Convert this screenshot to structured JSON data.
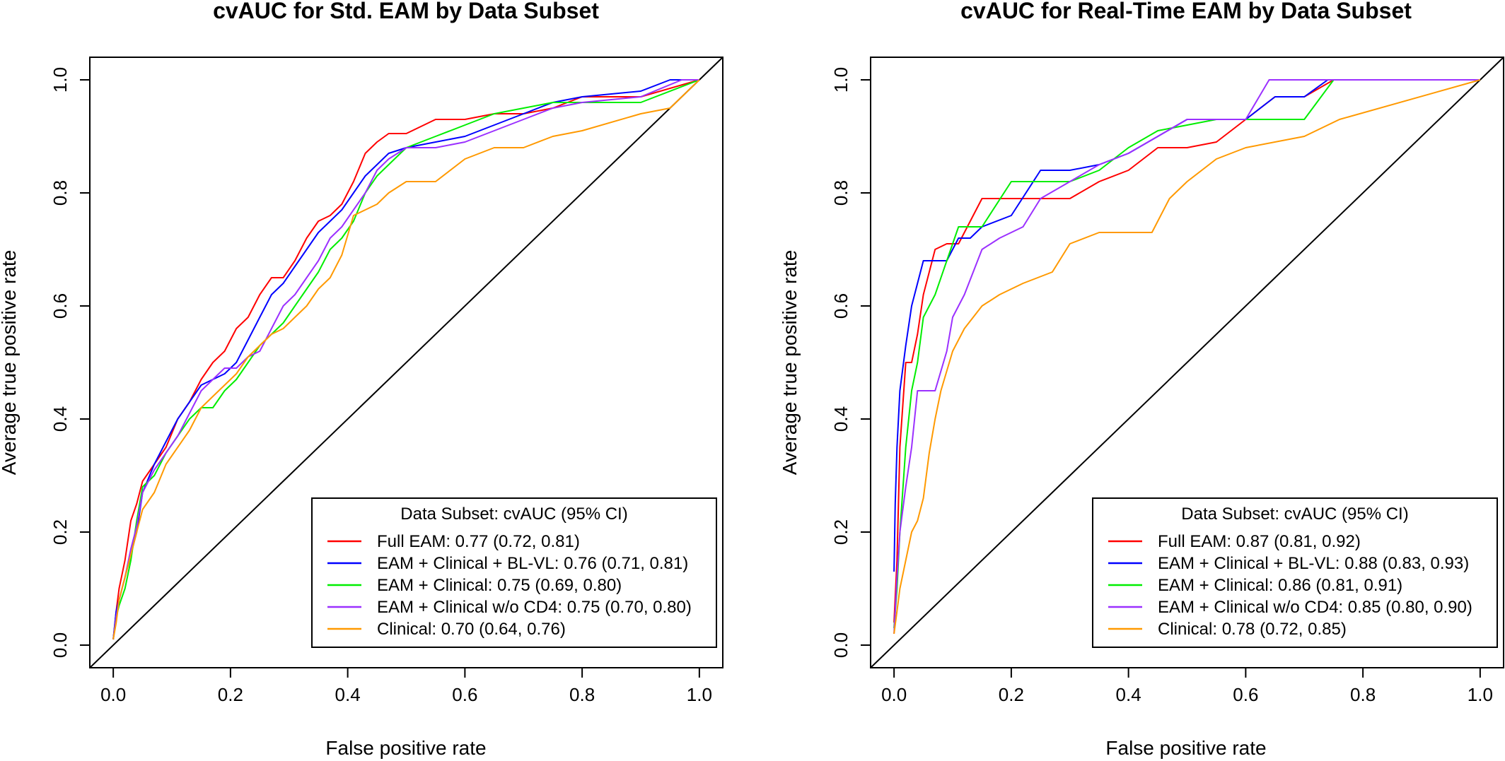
{
  "chart_data": [
    {
      "type": "line",
      "title": "cvAUC for Std. EAM by Data Subset",
      "xlabel": "False positive rate",
      "ylabel": "Average true positive rate",
      "xlim": [
        -0.04,
        1.04
      ],
      "ylim": [
        -0.04,
        1.04
      ],
      "xticks": [
        "0.0",
        "0.2",
        "0.4",
        "0.6",
        "0.8",
        "1.0"
      ],
      "yticks": [
        "0.0",
        "0.2",
        "0.4",
        "0.6",
        "0.8",
        "1.0"
      ],
      "legend": {
        "title": "Data Subset: cvAUC (95% CI)",
        "position": "bottom-right"
      },
      "reference_line": {
        "x": [
          -0.04,
          1.04
        ],
        "y": [
          -0.04,
          1.04
        ],
        "color": "#000000"
      },
      "series": [
        {
          "name": "Full EAM: 0.77 (0.72, 0.81)",
          "color": "#ff0000",
          "x": [
            0,
            0.005,
            0.01,
            0.02,
            0.03,
            0.04,
            0.05,
            0.07,
            0.09,
            0.11,
            0.13,
            0.15,
            0.17,
            0.19,
            0.21,
            0.23,
            0.25,
            0.27,
            0.29,
            0.31,
            0.33,
            0.35,
            0.37,
            0.39,
            0.41,
            0.43,
            0.45,
            0.47,
            0.5,
            0.55,
            0.6,
            0.65,
            0.7,
            0.75,
            0.8,
            0.9,
            1.0
          ],
          "y": [
            0.01,
            0.06,
            0.1,
            0.15,
            0.22,
            0.25,
            0.29,
            0.32,
            0.35,
            0.4,
            0.43,
            0.47,
            0.5,
            0.52,
            0.56,
            0.58,
            0.62,
            0.65,
            0.65,
            0.68,
            0.72,
            0.75,
            0.76,
            0.78,
            0.82,
            0.87,
            0.89,
            0.905,
            0.905,
            0.93,
            0.93,
            0.94,
            0.94,
            0.95,
            0.97,
            0.97,
            1.0
          ]
        },
        {
          "name": "EAM + Clinical + BL-VL: 0.76 (0.71, 0.81)",
          "color": "#0000ff",
          "x": [
            0,
            0.005,
            0.01,
            0.02,
            0.03,
            0.04,
            0.05,
            0.07,
            0.09,
            0.11,
            0.13,
            0.15,
            0.17,
            0.19,
            0.21,
            0.23,
            0.25,
            0.27,
            0.29,
            0.31,
            0.33,
            0.35,
            0.37,
            0.39,
            0.41,
            0.43,
            0.45,
            0.47,
            0.5,
            0.55,
            0.6,
            0.65,
            0.7,
            0.75,
            0.8,
            0.9,
            0.95,
            1.0
          ],
          "y": [
            0.01,
            0.06,
            0.08,
            0.12,
            0.16,
            0.2,
            0.27,
            0.32,
            0.36,
            0.4,
            0.43,
            0.46,
            0.47,
            0.48,
            0.5,
            0.54,
            0.58,
            0.62,
            0.64,
            0.67,
            0.7,
            0.73,
            0.75,
            0.77,
            0.8,
            0.83,
            0.85,
            0.87,
            0.88,
            0.89,
            0.9,
            0.92,
            0.94,
            0.96,
            0.97,
            0.98,
            1.0,
            1.0
          ]
        },
        {
          "name": "EAM + Clinical: 0.75 (0.69, 0.80)",
          "color": "#00ee00",
          "x": [
            0,
            0.005,
            0.01,
            0.02,
            0.03,
            0.04,
            0.05,
            0.07,
            0.09,
            0.11,
            0.13,
            0.15,
            0.17,
            0.19,
            0.21,
            0.23,
            0.25,
            0.27,
            0.29,
            0.31,
            0.33,
            0.35,
            0.37,
            0.39,
            0.41,
            0.43,
            0.45,
            0.47,
            0.5,
            0.55,
            0.6,
            0.65,
            0.7,
            0.75,
            0.8,
            0.9,
            1.0
          ],
          "y": [
            0.01,
            0.05,
            0.07,
            0.1,
            0.15,
            0.22,
            0.28,
            0.3,
            0.34,
            0.37,
            0.4,
            0.42,
            0.42,
            0.45,
            0.47,
            0.5,
            0.53,
            0.55,
            0.57,
            0.6,
            0.63,
            0.66,
            0.7,
            0.72,
            0.75,
            0.8,
            0.83,
            0.85,
            0.88,
            0.9,
            0.92,
            0.94,
            0.95,
            0.96,
            0.96,
            0.96,
            1.0
          ]
        },
        {
          "name": "EAM + Clinical w/o CD4: 0.75 (0.70, 0.80)",
          "color": "#9b30ff",
          "x": [
            0,
            0.005,
            0.01,
            0.02,
            0.03,
            0.04,
            0.05,
            0.07,
            0.09,
            0.11,
            0.13,
            0.15,
            0.17,
            0.19,
            0.21,
            0.23,
            0.25,
            0.27,
            0.29,
            0.31,
            0.33,
            0.35,
            0.37,
            0.39,
            0.41,
            0.43,
            0.45,
            0.47,
            0.5,
            0.55,
            0.6,
            0.65,
            0.7,
            0.75,
            0.8,
            0.9,
            0.97,
            1.0
          ],
          "y": [
            0.01,
            0.05,
            0.08,
            0.12,
            0.17,
            0.21,
            0.27,
            0.31,
            0.34,
            0.37,
            0.41,
            0.45,
            0.47,
            0.49,
            0.49,
            0.51,
            0.52,
            0.56,
            0.6,
            0.62,
            0.65,
            0.68,
            0.72,
            0.74,
            0.77,
            0.8,
            0.84,
            0.86,
            0.88,
            0.88,
            0.89,
            0.91,
            0.93,
            0.95,
            0.96,
            0.97,
            1.0,
            1.0
          ]
        },
        {
          "name": "Clinical: 0.70 (0.64, 0.76)",
          "color": "#ff9900",
          "x": [
            0,
            0.005,
            0.01,
            0.02,
            0.03,
            0.04,
            0.05,
            0.07,
            0.09,
            0.11,
            0.13,
            0.15,
            0.17,
            0.19,
            0.21,
            0.23,
            0.25,
            0.27,
            0.29,
            0.31,
            0.33,
            0.35,
            0.37,
            0.39,
            0.41,
            0.43,
            0.45,
            0.47,
            0.5,
            0.55,
            0.6,
            0.65,
            0.7,
            0.75,
            0.8,
            0.9,
            0.95,
            1.0
          ],
          "y": [
            0.01,
            0.04,
            0.08,
            0.12,
            0.16,
            0.2,
            0.24,
            0.27,
            0.32,
            0.35,
            0.38,
            0.42,
            0.44,
            0.46,
            0.48,
            0.51,
            0.53,
            0.55,
            0.56,
            0.58,
            0.6,
            0.63,
            0.65,
            0.69,
            0.76,
            0.77,
            0.78,
            0.8,
            0.82,
            0.82,
            0.86,
            0.88,
            0.88,
            0.9,
            0.91,
            0.94,
            0.95,
            1.0
          ]
        }
      ]
    },
    {
      "type": "line",
      "title": "cvAUC for Real-Time EAM by Data Subset",
      "xlabel": "False positive rate",
      "ylabel": "Average true positive rate",
      "xlim": [
        -0.04,
        1.04
      ],
      "ylim": [
        -0.04,
        1.04
      ],
      "xticks": [
        "0.0",
        "0.2",
        "0.4",
        "0.6",
        "0.8",
        "1.0"
      ],
      "yticks": [
        "0.0",
        "0.2",
        "0.4",
        "0.6",
        "0.8",
        "1.0"
      ],
      "legend": {
        "title": "Data Subset: cvAUC (95% CI)",
        "position": "bottom-right"
      },
      "reference_line": {
        "x": [
          -0.04,
          1.04
        ],
        "y": [
          -0.04,
          1.04
        ],
        "color": "#000000"
      },
      "series": [
        {
          "name": "Full EAM: 0.87 (0.81, 0.92)",
          "color": "#ff0000",
          "x": [
            0,
            0.005,
            0.01,
            0.02,
            0.03,
            0.04,
            0.05,
            0.07,
            0.09,
            0.11,
            0.13,
            0.15,
            0.2,
            0.3,
            0.35,
            0.4,
            0.45,
            0.5,
            0.55,
            0.6,
            0.65,
            0.7,
            0.75,
            1.0
          ],
          "y": [
            0.04,
            0.15,
            0.35,
            0.5,
            0.5,
            0.55,
            0.62,
            0.7,
            0.71,
            0.71,
            0.75,
            0.79,
            0.79,
            0.79,
            0.82,
            0.84,
            0.88,
            0.88,
            0.89,
            0.93,
            0.97,
            0.97,
            1.0,
            1.0
          ]
        },
        {
          "name": "EAM + Clinical + BL-VL: 0.88 (0.83, 0.93)",
          "color": "#0000ff",
          "x": [
            0,
            0.002,
            0.005,
            0.01,
            0.02,
            0.03,
            0.04,
            0.05,
            0.07,
            0.09,
            0.11,
            0.13,
            0.15,
            0.2,
            0.25,
            0.3,
            0.35,
            0.4,
            0.45,
            0.5,
            0.55,
            0.6,
            0.65,
            0.7,
            0.74,
            1.0
          ],
          "y": [
            0.13,
            0.25,
            0.35,
            0.45,
            0.53,
            0.6,
            0.64,
            0.68,
            0.68,
            0.68,
            0.72,
            0.72,
            0.74,
            0.76,
            0.84,
            0.84,
            0.85,
            0.87,
            0.9,
            0.93,
            0.93,
            0.93,
            0.97,
            0.97,
            1.0,
            1.0
          ]
        },
        {
          "name": "EAM + Clinical: 0.86 (0.81, 0.91)",
          "color": "#00ee00",
          "x": [
            0,
            0.005,
            0.01,
            0.02,
            0.03,
            0.04,
            0.05,
            0.07,
            0.09,
            0.11,
            0.13,
            0.15,
            0.2,
            0.25,
            0.3,
            0.35,
            0.4,
            0.45,
            0.5,
            0.55,
            0.6,
            0.65,
            0.7,
            0.75,
            1.0
          ],
          "y": [
            0.03,
            0.1,
            0.2,
            0.35,
            0.45,
            0.5,
            0.58,
            0.62,
            0.68,
            0.74,
            0.74,
            0.74,
            0.82,
            0.82,
            0.82,
            0.84,
            0.88,
            0.91,
            0.92,
            0.93,
            0.93,
            0.93,
            0.93,
            1.0,
            1.0
          ]
        },
        {
          "name": "EAM + Clinical w/o CD4: 0.85 (0.80, 0.90)",
          "color": "#9b30ff",
          "x": [
            0,
            0.005,
            0.01,
            0.02,
            0.03,
            0.04,
            0.05,
            0.07,
            0.09,
            0.1,
            0.12,
            0.15,
            0.18,
            0.22,
            0.25,
            0.3,
            0.35,
            0.4,
            0.45,
            0.5,
            0.55,
            0.6,
            0.64,
            0.7,
            1.0
          ],
          "y": [
            0.02,
            0.12,
            0.2,
            0.28,
            0.35,
            0.45,
            0.45,
            0.45,
            0.52,
            0.58,
            0.62,
            0.7,
            0.72,
            0.74,
            0.79,
            0.82,
            0.85,
            0.87,
            0.9,
            0.93,
            0.93,
            0.93,
            1.0,
            1.0,
            1.0
          ]
        },
        {
          "name": "Clinical: 0.78 (0.72, 0.85)",
          "color": "#ff9900",
          "x": [
            0,
            0.005,
            0.01,
            0.02,
            0.03,
            0.04,
            0.05,
            0.06,
            0.07,
            0.08,
            0.1,
            0.12,
            0.15,
            0.18,
            0.22,
            0.27,
            0.3,
            0.35,
            0.4,
            0.44,
            0.47,
            0.5,
            0.55,
            0.6,
            0.7,
            0.76,
            1.0
          ],
          "y": [
            0.02,
            0.06,
            0.1,
            0.15,
            0.2,
            0.22,
            0.26,
            0.34,
            0.4,
            0.45,
            0.52,
            0.56,
            0.6,
            0.62,
            0.64,
            0.66,
            0.71,
            0.73,
            0.73,
            0.73,
            0.79,
            0.82,
            0.86,
            0.88,
            0.9,
            0.93,
            1.0
          ]
        }
      ]
    }
  ]
}
